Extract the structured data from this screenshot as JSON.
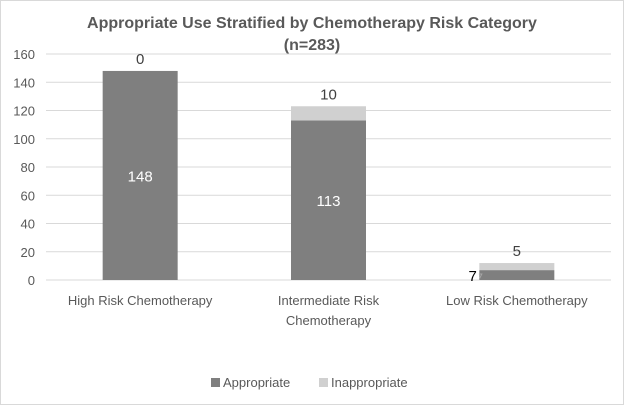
{
  "chart_data": {
    "type": "bar",
    "stacked": true,
    "title": "Appropriate Use Stratified by Chemotherapy Risk Category",
    "subtitle": "(n=283)",
    "categories": [
      [
        "High Risk Chemotherapy"
      ],
      [
        "Intermediate Risk",
        "Chemotherapy"
      ],
      [
        "Low Risk Chemotherapy"
      ]
    ],
    "series": [
      {
        "name": "Appropriate",
        "values": [
          148,
          113,
          7
        ],
        "color": "#7f7f7f"
      },
      {
        "name": "Inappropriate",
        "values": [
          0,
          10,
          5
        ],
        "color": "#d0d0d0"
      }
    ],
    "ylim": [
      0,
      160
    ],
    "yticks": [
      0,
      20,
      40,
      60,
      80,
      100,
      120,
      140,
      160
    ],
    "grid": true,
    "legend": "bottom"
  }
}
